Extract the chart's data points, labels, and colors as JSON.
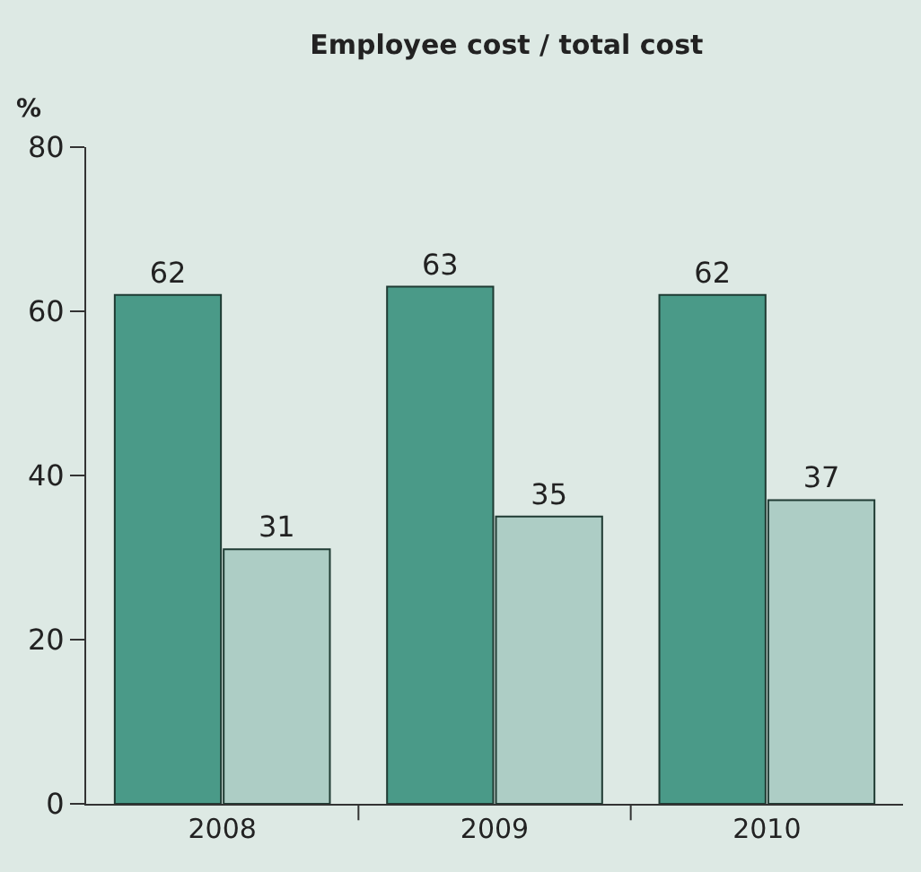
{
  "chart_data": {
    "type": "bar",
    "title": "Employee cost / total cost",
    "ylabel": "%",
    "categories": [
      "2008",
      "2009",
      "2010"
    ],
    "series": [
      {
        "color": "#4a9a88",
        "values": [
          62,
          63,
          62
        ]
      },
      {
        "color": "#adcdc5",
        "values": [
          31,
          35,
          37
        ]
      }
    ],
    "ylim": [
      0,
      80
    ],
    "yticks": [
      0,
      20,
      40,
      60,
      80
    ],
    "data_labels": true,
    "grid": false
  }
}
